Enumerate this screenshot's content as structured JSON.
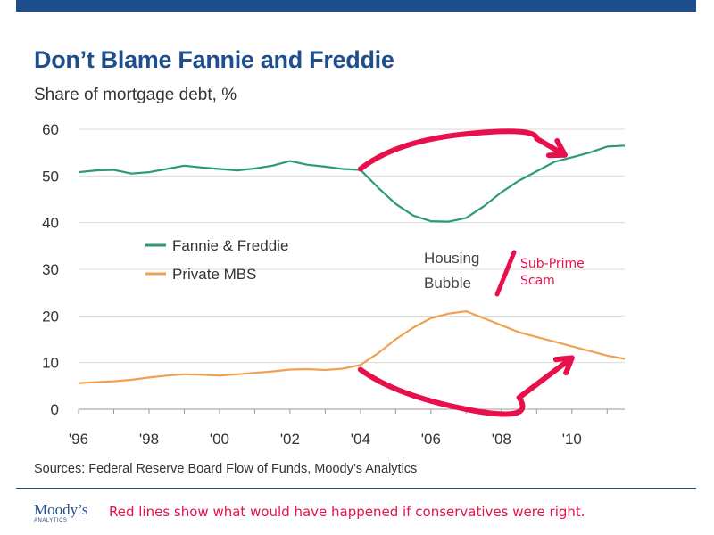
{
  "header": {
    "title": "Don’t Blame Fannie and Freddie",
    "subtitle": "Share of mortgage debt, %"
  },
  "chart_data": {
    "type": "line",
    "x_tick_labels": [
      "'96",
      "'98",
      "'00",
      "'02",
      "'04",
      "'06",
      "'08",
      "'10"
    ],
    "x_ticks": [
      1996,
      1998,
      2000,
      2002,
      2004,
      2006,
      2008,
      2010
    ],
    "xlim": [
      1996,
      2011.5
    ],
    "ylim": [
      0,
      60
    ],
    "y_ticks": [
      0,
      10,
      20,
      30,
      40,
      50,
      60
    ],
    "grid": true,
    "legend_position": "middle-left",
    "series": [
      {
        "name": "Fannie & Freddie",
        "color": "#2a9a7a",
        "x": [
          1996.0,
          1996.5,
          1997.0,
          1997.5,
          1998.0,
          1998.5,
          1999.0,
          1999.5,
          2000.0,
          2000.5,
          2001.0,
          2001.5,
          2002.0,
          2002.5,
          2003.0,
          2003.5,
          2004.0,
          2004.5,
          2005.0,
          2005.5,
          2006.0,
          2006.5,
          2007.0,
          2007.5,
          2008.0,
          2008.5,
          2009.0,
          2009.5,
          2010.0,
          2010.5,
          2011.0,
          2011.5
        ],
        "values": [
          50.8,
          51.2,
          51.3,
          50.5,
          50.8,
          51.5,
          52.2,
          51.8,
          51.5,
          51.2,
          51.6,
          52.2,
          53.2,
          52.4,
          52.0,
          51.5,
          51.3,
          47.5,
          44.0,
          41.5,
          40.3,
          40.2,
          41.0,
          43.5,
          46.5,
          49.0,
          51.0,
          53.0,
          54.0,
          55.0,
          56.3,
          56.5
        ]
      },
      {
        "name": "Private MBS",
        "color": "#f0a050",
        "x": [
          1996.0,
          1996.5,
          1997.0,
          1997.5,
          1998.0,
          1998.5,
          1999.0,
          1999.5,
          2000.0,
          2000.5,
          2001.0,
          2001.5,
          2002.0,
          2002.5,
          2003.0,
          2003.5,
          2004.0,
          2004.5,
          2005.0,
          2005.5,
          2006.0,
          2006.5,
          2007.0,
          2007.5,
          2008.0,
          2008.5,
          2009.0,
          2009.5,
          2010.0,
          2010.5,
          2011.0,
          2011.5
        ],
        "values": [
          5.6,
          5.8,
          6.0,
          6.3,
          6.8,
          7.2,
          7.5,
          7.4,
          7.2,
          7.5,
          7.8,
          8.1,
          8.5,
          8.6,
          8.4,
          8.7,
          9.5,
          12.0,
          15.0,
          17.5,
          19.5,
          20.5,
          21.0,
          19.5,
          18.0,
          16.5,
          15.5,
          14.5,
          13.5,
          12.5,
          11.5,
          10.8
        ]
      }
    ],
    "annotations": [
      {
        "text_lines": [
          "Housing",
          "Bubble"
        ],
        "color": "#444444"
      },
      {
        "text_lines": [
          "Sub-Prime",
          "Scam"
        ],
        "color": "#e8104a"
      }
    ],
    "hand_drawn_arrows": [
      {
        "color": "#e8104a",
        "x": [
          2004.0,
          2005.0,
          2007.0,
          2009.0,
          2009.8
        ],
        "values": [
          51.5,
          57.5,
          59.0,
          58.0,
          54.5
        ]
      },
      {
        "color": "#e8104a",
        "x": [
          2004.0,
          2005.0,
          2007.0,
          2008.5,
          2010.0
        ],
        "values": [
          8.5,
          3.0,
          0.0,
          2.5,
          11.0
        ]
      }
    ]
  },
  "footer": {
    "sources": "Sources: Federal Reserve Board Flow of Funds, Moody’s Analytics",
    "logo_text": "Moody’s",
    "logo_subtext": "ANALYTICS",
    "note": "Red lines show what would have happened if conservatives were right."
  }
}
